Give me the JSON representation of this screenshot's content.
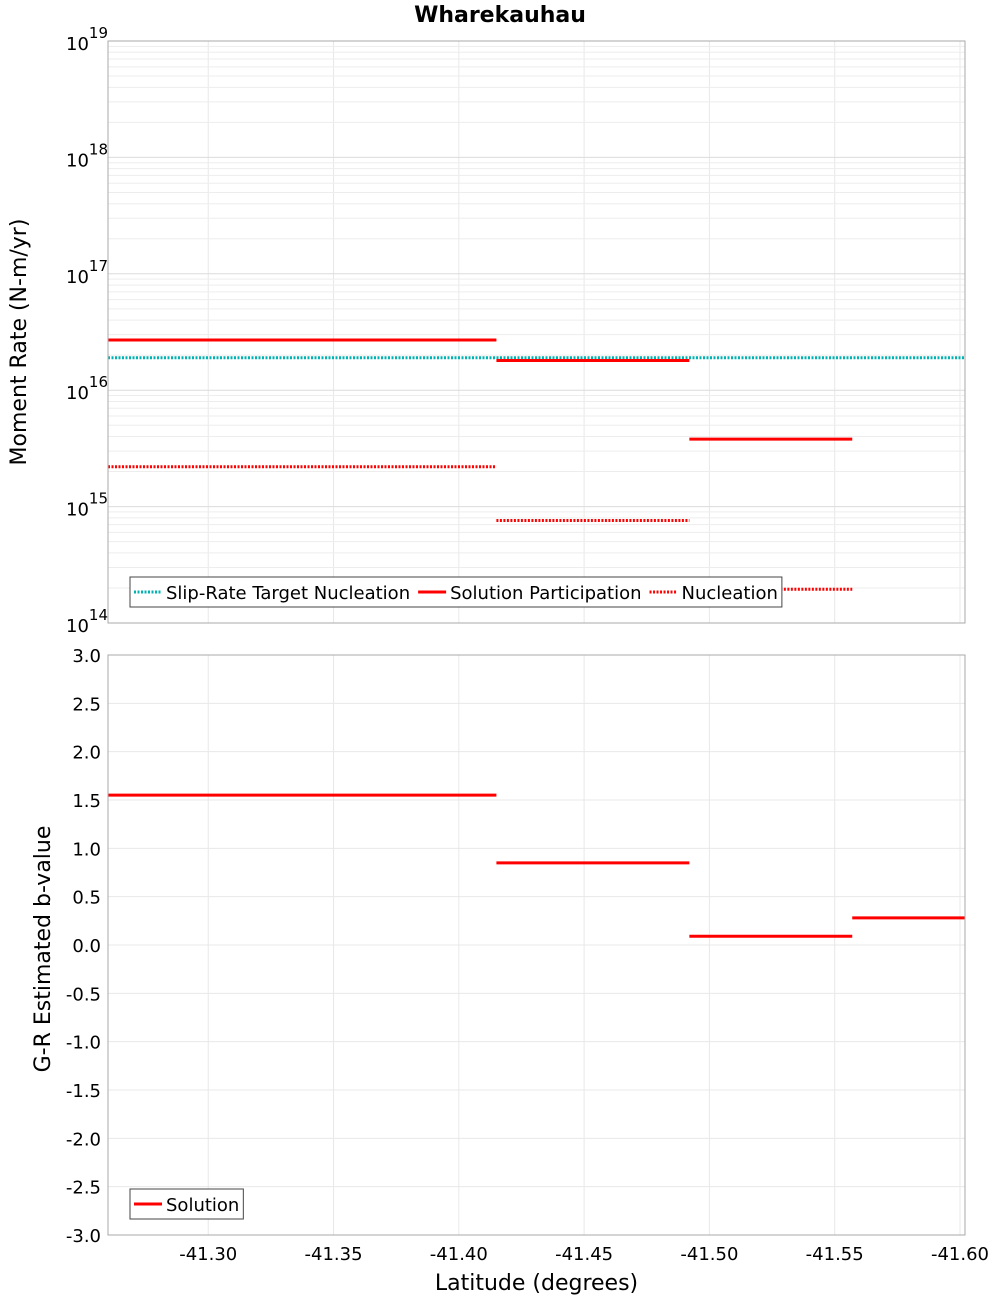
{
  "chart_data": [
    {
      "type": "line",
      "title": "Wharekauhau",
      "xlabel": "",
      "ylabel": "Moment Rate (N-m/yr)",
      "yscale": "log",
      "ylim": [
        100000000000000.0,
        1e+19
      ],
      "xlim": [
        -41.26,
        -41.602
      ],
      "ytick_base": "10",
      "yticks": [
        {
          "exp": "14",
          "value": 100000000000000.0
        },
        {
          "exp": "15",
          "value": 1000000000000000.0
        },
        {
          "exp": "16",
          "value": 1e+16
        },
        {
          "exp": "17",
          "value": 1e+17
        },
        {
          "exp": "18",
          "value": 1e+18
        },
        {
          "exp": "19",
          "value": 1e+19
        }
      ],
      "grid": true,
      "legend_position": "bottom-left",
      "series": [
        {
          "name": "Slip-Rate Target Nucleation",
          "color": "#00b3b3",
          "style": "dotted",
          "segments": [
            {
              "x": [
                -41.26,
                -41.602
              ],
              "y": 1.9e+16
            }
          ]
        },
        {
          "name": "Solution Participation",
          "color": "#ff0000",
          "style": "solid",
          "segments": [
            {
              "x": [
                -41.26,
                -41.415
              ],
              "y": 2.7e+16
            },
            {
              "x": [
                -41.415,
                -41.492
              ],
              "y": 1.8e+16
            },
            {
              "x": [
                -41.492,
                -41.557
              ],
              "y": 3800000000000000.0
            }
          ]
        },
        {
          "name": "Nucleation",
          "color": "#ff0000",
          "style": "dotted",
          "segments": [
            {
              "x": [
                -41.26,
                -41.415
              ],
              "y": 2200000000000000.0
            },
            {
              "x": [
                -41.415,
                -41.492
              ],
              "y": 760000000000000.0
            },
            {
              "x": [
                -41.492,
                -41.557
              ],
              "y": 195000000000000.0
            }
          ]
        }
      ]
    },
    {
      "type": "line",
      "title": "",
      "xlabel": "Latitude (degrees)",
      "ylabel": "G-R Estimated b-value",
      "ylim": [
        -3.0,
        3.0
      ],
      "xlim": [
        -41.26,
        -41.602
      ],
      "yticks": [
        "3.0",
        "2.5",
        "2.0",
        "1.5",
        "1.0",
        "0.5",
        "0.0",
        "-0.5",
        "-1.0",
        "-1.5",
        "-2.0",
        "-2.5",
        "-3.0"
      ],
      "xticks": [
        "-41.30",
        "-41.35",
        "-41.40",
        "-41.45",
        "-41.50",
        "-41.55",
        "-41.60"
      ],
      "grid": true,
      "legend_position": "bottom-left",
      "series": [
        {
          "name": "Solution",
          "color": "#ff0000",
          "style": "solid",
          "segments": [
            {
              "x": [
                -41.26,
                -41.415
              ],
              "y": 1.55
            },
            {
              "x": [
                -41.415,
                -41.492
              ],
              "y": 0.85
            },
            {
              "x": [
                -41.492,
                -41.557
              ],
              "y": 0.09
            },
            {
              "x": [
                -41.557,
                -41.602
              ],
              "y": 0.28
            }
          ]
        }
      ]
    }
  ]
}
